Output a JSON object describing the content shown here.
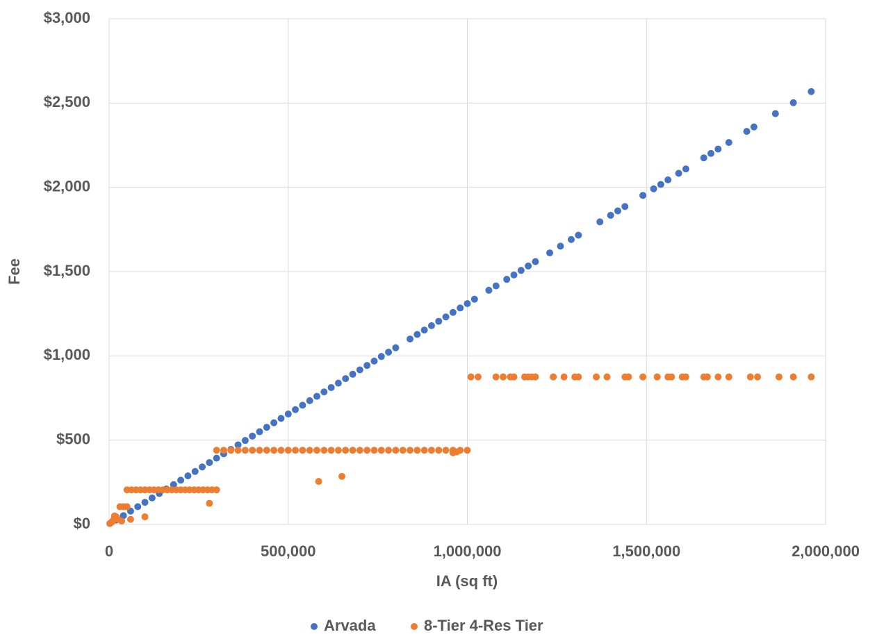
{
  "chart_data": {
    "type": "scatter",
    "x_label": "IA (sq ft)",
    "y_label": "Fee",
    "xlim": [
      0,
      2000000
    ],
    "ylim": [
      0,
      3000
    ],
    "xticks": [
      0,
      {
        "value": 500000,
        "label": "500,000"
      },
      {
        "value": 1000000,
        "label": "1,000,000"
      },
      {
        "value": 1500000,
        "label": "1,500,000"
      },
      {
        "value": 2000000,
        "label": "2,000,000"
      }
    ],
    "yticks": [
      {
        "value": 0,
        "label": "$0"
      },
      {
        "value": 500,
        "label": "$500"
      },
      {
        "value": 1000,
        "label": "$1,000"
      },
      {
        "value": 1500,
        "label": "$1,500"
      },
      {
        "value": 2000,
        "label": "$2,000"
      },
      {
        "value": 2500,
        "label": "$2,500"
      },
      {
        "value": 3000,
        "label": "$3,000"
      }
    ],
    "grid": true,
    "legend": "bottom",
    "series": [
      {
        "name": "Arvada",
        "color": "#4472c4",
        "x": [
          20000,
          40000,
          60000,
          80000,
          100000,
          120000,
          140000,
          160000,
          180000,
          200000,
          220000,
          240000,
          260000,
          280000,
          300000,
          320000,
          340000,
          360000,
          380000,
          400000,
          420000,
          440000,
          460000,
          480000,
          500000,
          520000,
          540000,
          560000,
          580000,
          600000,
          620000,
          640000,
          660000,
          680000,
          700000,
          720000,
          740000,
          760000,
          780000,
          800000,
          840000,
          860000,
          880000,
          900000,
          920000,
          940000,
          960000,
          980000,
          1000000,
          1020000,
          1060000,
          1080000,
          1110000,
          1130000,
          1150000,
          1170000,
          1190000,
          1230000,
          1260000,
          1290000,
          1310000,
          1370000,
          1400000,
          1420000,
          1440000,
          1490000,
          1520000,
          1540000,
          1560000,
          1590000,
          1610000,
          1660000,
          1680000,
          1700000,
          1730000,
          1780000,
          1800000,
          1860000,
          1910000,
          1960000
        ],
        "values": [
          26,
          52,
          79,
          105,
          131,
          157,
          183,
          210,
          236,
          262,
          288,
          314,
          341,
          367,
          393,
          419,
          445,
          472,
          498,
          524,
          550,
          576,
          603,
          629,
          655,
          681,
          707,
          734,
          760,
          786,
          812,
          838,
          865,
          891,
          917,
          943,
          969,
          996,
          1022,
          1048,
          1100,
          1127,
          1153,
          1179,
          1205,
          1231,
          1258,
          1284,
          1310,
          1336,
          1389,
          1415,
          1454,
          1480,
          1507,
          1533,
          1559,
          1611,
          1651,
          1690,
          1716,
          1795,
          1834,
          1860,
          1886,
          1952,
          1991,
          2017,
          2044,
          2083,
          2109,
          2175,
          2201,
          2227,
          2266,
          2332,
          2358,
          2437,
          2502,
          2568
        ]
      },
      {
        "name": "8-Tier 4-Res Tier",
        "color": "#ed7d31",
        "x": [
          2000,
          5000,
          8000,
          12000,
          15000,
          20000,
          25000,
          30000,
          35000,
          40000,
          50000,
          60000,
          100000,
          50000,
          62500,
          75000,
          87500,
          100000,
          112500,
          125000,
          137500,
          150000,
          162500,
          175000,
          187500,
          200000,
          212500,
          225000,
          237500,
          250000,
          262500,
          275000,
          287500,
          300000,
          280000,
          300000,
          320000,
          340000,
          360000,
          380000,
          400000,
          420000,
          440000,
          460000,
          480000,
          500000,
          520000,
          540000,
          560000,
          580000,
          600000,
          620000,
          640000,
          660000,
          680000,
          700000,
          720000,
          740000,
          760000,
          780000,
          800000,
          820000,
          840000,
          860000,
          880000,
          900000,
          920000,
          940000,
          960000,
          980000,
          1000000,
          585000,
          650000,
          960000,
          970000,
          1010000,
          1030000,
          1080000,
          1100000,
          1120000,
          1130000,
          1160000,
          1170000,
          1180000,
          1190000,
          1240000,
          1270000,
          1300000,
          1310000,
          1360000,
          1390000,
          1440000,
          1450000,
          1490000,
          1530000,
          1560000,
          1570000,
          1600000,
          1610000,
          1660000,
          1670000,
          1700000,
          1730000,
          1790000,
          1810000,
          1870000,
          1910000,
          1960000
        ],
        "values": [
          5,
          10,
          15,
          25,
          50,
          45,
          30,
          105,
          20,
          105,
          105,
          30,
          45,
          205,
          205,
          205,
          205,
          205,
          205,
          205,
          205,
          205,
          205,
          205,
          205,
          205,
          205,
          205,
          205,
          205,
          205,
          205,
          205,
          205,
          125,
          440,
          440,
          440,
          440,
          440,
          440,
          440,
          440,
          440,
          440,
          440,
          440,
          440,
          440,
          440,
          440,
          440,
          440,
          440,
          440,
          440,
          440,
          440,
          440,
          440,
          440,
          440,
          440,
          440,
          440,
          440,
          440,
          440,
          440,
          440,
          440,
          255,
          285,
          425,
          430,
          875,
          875,
          875,
          875,
          875,
          875,
          875,
          875,
          875,
          875,
          875,
          875,
          875,
          875,
          875,
          875,
          875,
          875,
          875,
          875,
          875,
          875,
          875,
          875,
          875,
          875,
          875,
          875,
          875,
          875,
          875,
          875,
          875
        ]
      }
    ]
  }
}
